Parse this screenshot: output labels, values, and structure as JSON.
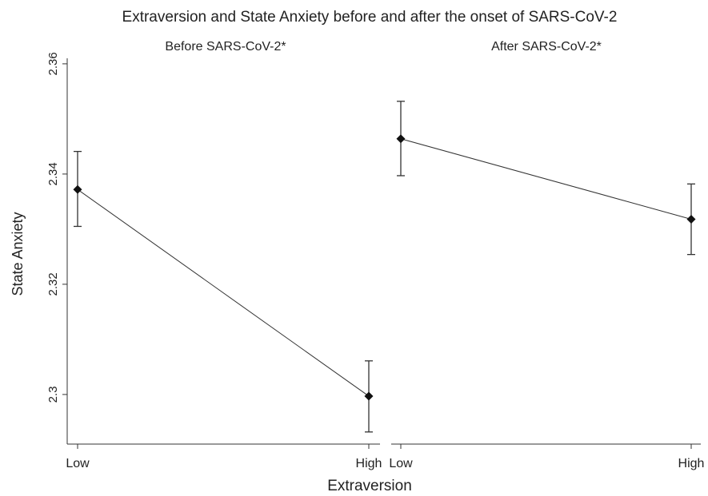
{
  "chart_data": {
    "type": "line",
    "title": "Extraversion and State Anxiety before and after the onset of SARS-CoV-2",
    "xlabel": "Extraversion",
    "ylabel": "State Anxiety",
    "ylim": [
      2.291,
      2.361
    ],
    "yticks": [
      2.3,
      2.32,
      2.34,
      2.36
    ],
    "ytick_labels": [
      "2.3",
      "2.32",
      "2.34",
      "2.36"
    ],
    "categories": [
      "Low",
      "High"
    ],
    "grid": false,
    "panels": [
      {
        "title": "Before SARS-CoV-2*",
        "x": [
          "Low",
          "High"
        ],
        "y": [
          2.3372,
          2.2997
        ],
        "ci_low": [
          2.3305,
          2.2932
        ],
        "ci_high": [
          2.3441,
          2.3061
        ]
      },
      {
        "title": "After SARS-CoV-2*",
        "x": [
          "Low",
          "High"
        ],
        "y": [
          2.3464,
          2.3318
        ],
        "ci_low": [
          2.3397,
          2.3254
        ],
        "ci_high": [
          2.3532,
          2.3382
        ]
      }
    ]
  }
}
